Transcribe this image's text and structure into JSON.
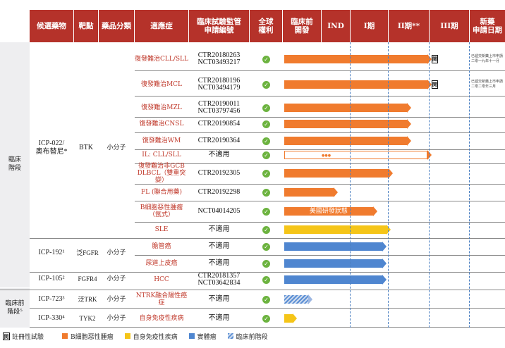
{
  "headers": [
    "候選藥物",
    "靶點",
    "藥品分類",
    "適應症",
    "臨床試驗監管\n申請編號",
    "全球\n權利",
    "臨床前\n開發",
    "IND",
    "I期",
    "II期**",
    "III期",
    "新藥\n申請日期"
  ],
  "stages": {
    "clinical": "臨床\n階段",
    "preclinical": "臨床前\n階段⁵"
  },
  "groups": [
    {
      "drug": "ICP-022/\n奧布替尼*",
      "target": "BTK",
      "class": "小分子"
    },
    {
      "drug": "ICP-192¹",
      "target": "泛FGFR",
      "class": "小分子"
    },
    {
      "drug": "ICP-105²",
      "target": "FGFR4",
      "class": "小分子"
    },
    {
      "drug": "ICP-723³",
      "target": "泛TRK",
      "class": "小分子"
    },
    {
      "drug": "ICP-330⁴",
      "target": "TYK2",
      "class": "小分子"
    }
  ],
  "rows": [
    {
      "indication": "復發難治CLL/SLL",
      "ct": "CTR20180263\nNCT03493217",
      "rights": "✓",
      "bar_label": "",
      "nda": "已遞交新藥上市申請\n二零一九年十一月"
    },
    {
      "indication": "復發難治MCL",
      "ct": "CTR20180196\nNCT03494179",
      "rights": "✓",
      "bar_label": "",
      "nda": "已遞交新藥上市申請\n二零二零年三月"
    },
    {
      "indication": "復發難治MZL",
      "ct": "CTR20190011\nNCT03797456",
      "rights": "✓",
      "bar_label": "",
      "nda": ""
    },
    {
      "indication": "復發難治CNSL",
      "ct": "CTR20190854",
      "rights": "✓",
      "bar_label": "",
      "nda": ""
    },
    {
      "indication": "復發難治WM",
      "ct": "CTR20190364",
      "rights": "✓",
      "bar_label": "",
      "nda": ""
    },
    {
      "indication": "IL: CLL/SLL",
      "ct": "不適用",
      "rights": "✓",
      "bar_label": "●●●",
      "nda": ""
    },
    {
      "indication": "復發難治非GCB\nDLBCL（雙重突變）",
      "ct": "CTR20192305",
      "rights": "✓",
      "bar_label": "",
      "nda": ""
    },
    {
      "indication": "FL (聯合用藥)",
      "ct": "CTR20192298",
      "rights": "✓",
      "bar_label": "",
      "nda": ""
    },
    {
      "indication": "B細胞惡性腫瘤\n（氬式）",
      "ct": "NCT04014205",
      "rights": "✓",
      "bar_label": "美國研發狀態",
      "nda": ""
    },
    {
      "indication": "SLE",
      "ct": "不適用",
      "rights": "✓",
      "bar_label": "",
      "nda": ""
    },
    {
      "indication": "膽管癌",
      "ct": "不適用",
      "rights": "✓",
      "bar_label": "",
      "nda": ""
    },
    {
      "indication": "尿道上皮癌",
      "ct": "不適用",
      "rights": "✓",
      "bar_label": "",
      "nda": ""
    },
    {
      "indication": "HCC",
      "ct": "CTR20181357\nNCT03642834",
      "rights": "✓",
      "bar_label": "",
      "nda": ""
    },
    {
      "indication": "NTRK融合陽性癌症",
      "ct": "不適用",
      "rights": "✓",
      "bar_label": "",
      "nda": ""
    },
    {
      "indication": "自身免疫性疾病",
      "ct": "不適用",
      "rights": "✓",
      "bar_label": "",
      "nda": ""
    }
  ],
  "progress": [
    {
      "stage_index": 4.05,
      "color": "#f07b2e",
      "style": "solid",
      "pivotal": true
    },
    {
      "stage_index": 4.05,
      "color": "#f07b2e",
      "style": "solid",
      "pivotal": true
    },
    {
      "stage_index": 3.55,
      "color": "#f07b2e",
      "style": "solid",
      "pivotal": false
    },
    {
      "stage_index": 3.55,
      "color": "#f07b2e",
      "style": "solid",
      "pivotal": false
    },
    {
      "stage_index": 3.55,
      "color": "#f07b2e",
      "style": "solid",
      "pivotal": false
    },
    {
      "stage_index": 4.05,
      "color": "#f07b2e",
      "style": "outline",
      "pivotal": false
    },
    {
      "stage_index": 3.1,
      "color": "#f07b2e",
      "style": "solid",
      "pivotal": false
    },
    {
      "stage_index": 1.55,
      "color": "#f07b2e",
      "style": "solid",
      "pivotal": false
    },
    {
      "stage_index": 2.7,
      "color": "#f07b2e",
      "style": "solid",
      "pivotal": false
    },
    {
      "stage_index": 3.05,
      "color": "#f5c518",
      "style": "solid",
      "pivotal": false
    },
    {
      "stage_index": 2.95,
      "color": "#4f86d0",
      "style": "solid",
      "pivotal": false
    },
    {
      "stage_index": 2.95,
      "color": "#4f86d0",
      "style": "solid",
      "pivotal": false
    },
    {
      "stage_index": 2.95,
      "color": "#4f86d0",
      "style": "solid",
      "pivotal": false
    },
    {
      "stage_index": 0.75,
      "color": "#4f86d0",
      "style": "pattern",
      "pivotal": false
    },
    {
      "stage_index": 0.35,
      "color": "#f5c518",
      "style": "solid",
      "pivotal": false
    }
  ],
  "legend": {
    "pivotal": "註冊性試驗",
    "bcell": "B細胞惡性腫瘤",
    "autoimmune": "自身免疫性疾病",
    "solid": "實體瘤",
    "preclinical": "臨床前階段"
  },
  "colors": {
    "header": "#b5322a",
    "orange": "#f07b2e",
    "yellow": "#f5c518",
    "blue": "#4f86d0"
  }
}
